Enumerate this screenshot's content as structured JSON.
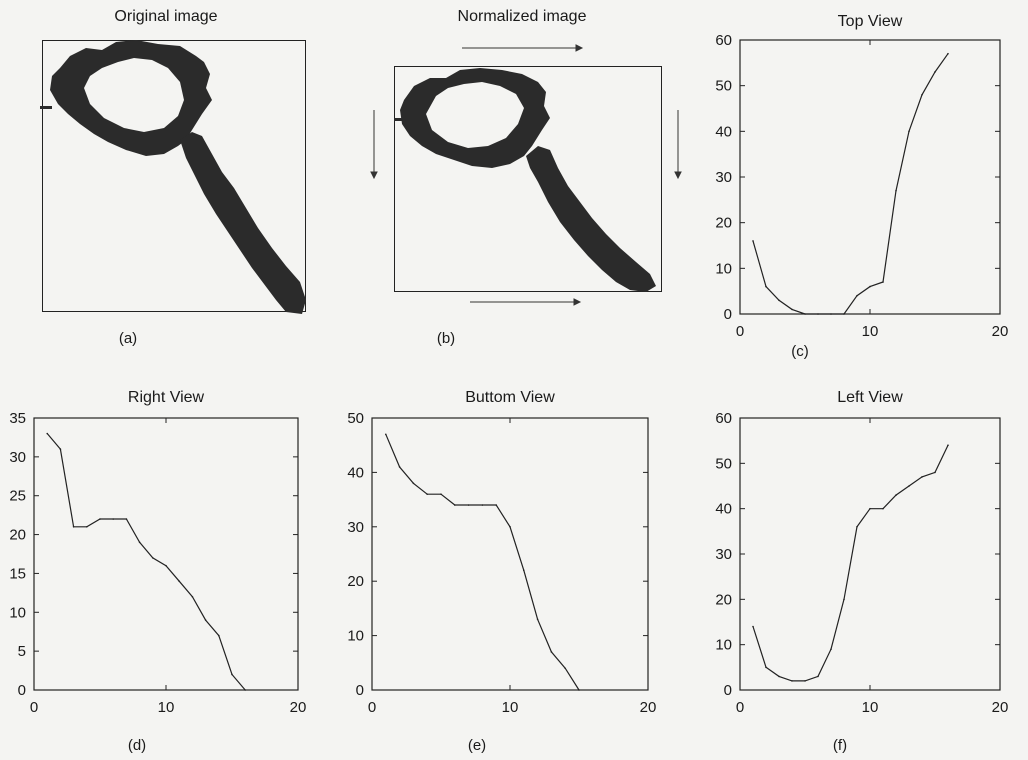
{
  "panel_a": {
    "title": "Original image",
    "caption": "(a)"
  },
  "panel_b": {
    "title": "Normalized image",
    "caption": "(b)"
  },
  "chart_data": [
    {
      "id": "c",
      "type": "line",
      "title": "Top View",
      "caption": "(c)",
      "xlim": [
        0,
        20
      ],
      "ylim": [
        0,
        60
      ],
      "xticks": [
        0,
        10,
        20
      ],
      "yticks": [
        0,
        10,
        20,
        30,
        40,
        50,
        60
      ],
      "x": [
        1,
        2,
        3,
        4,
        5,
        6,
        7,
        8,
        9,
        10,
        11,
        12,
        13,
        14,
        15,
        16
      ],
      "values": [
        16,
        6,
        3,
        1,
        0,
        0,
        0,
        0,
        4,
        6,
        7,
        27,
        40,
        48,
        53,
        57
      ]
    },
    {
      "id": "d",
      "type": "line",
      "title": "Right View",
      "caption": "(d)",
      "xlim": [
        0,
        20
      ],
      "ylim": [
        0,
        35
      ],
      "xticks": [
        0,
        10,
        20
      ],
      "yticks": [
        0,
        5,
        10,
        15,
        20,
        25,
        30,
        35
      ],
      "x": [
        1,
        2,
        3,
        4,
        5,
        6,
        7,
        8,
        9,
        10,
        11,
        12,
        13,
        14,
        15,
        16
      ],
      "values": [
        33,
        31,
        21,
        21,
        22,
        22,
        22,
        19,
        17,
        16,
        14,
        12,
        9,
        7,
        2,
        0
      ]
    },
    {
      "id": "e",
      "type": "line",
      "title": "Buttom View",
      "caption": "(e)",
      "xlim": [
        0,
        20
      ],
      "ylim": [
        0,
        50
      ],
      "xticks": [
        0,
        10,
        20
      ],
      "yticks": [
        0,
        10,
        20,
        30,
        40,
        50
      ],
      "x": [
        1,
        2,
        3,
        4,
        5,
        6,
        7,
        8,
        9,
        10,
        11,
        12,
        13,
        14,
        15
      ],
      "values": [
        47,
        41,
        38,
        36,
        36,
        34,
        34,
        34,
        34,
        30,
        22,
        13,
        7,
        4,
        0
      ]
    },
    {
      "id": "f",
      "type": "line",
      "title": "Left View",
      "caption": "(f)",
      "xlim": [
        0,
        20
      ],
      "ylim": [
        0,
        60
      ],
      "xticks": [
        0,
        10,
        20
      ],
      "yticks": [
        0,
        10,
        20,
        30,
        40,
        50,
        60
      ],
      "x": [
        1,
        2,
        3,
        4,
        5,
        6,
        7,
        8,
        9,
        10,
        11,
        12,
        13,
        14,
        15,
        16
      ],
      "values": [
        14,
        5,
        3,
        2,
        2,
        3,
        9,
        20,
        36,
        40,
        40,
        43,
        45,
        47,
        48,
        54
      ]
    }
  ]
}
